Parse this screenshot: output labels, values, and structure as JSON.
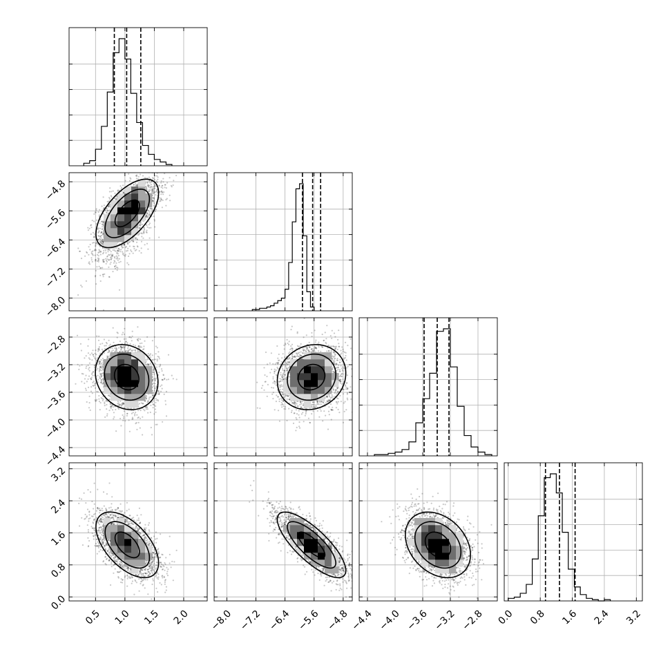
{
  "chart_data": {
    "type": "corner",
    "parameters": [
      {
        "range": [
          0.05,
          2.4
        ],
        "ticks": [
          0.5,
          1.0,
          1.5,
          2.0
        ],
        "tick_labels": [
          "0.5",
          "1.0",
          "1.5",
          "2.0"
        ],
        "quantiles": [
          0.82,
          1.03,
          1.27
        ]
      },
      {
        "range": [
          -8.35,
          -4.55
        ],
        "ticks": [
          -8.0,
          -7.2,
          -6.4,
          -5.6,
          -4.8
        ],
        "tick_labels": [
          "−8.0",
          "−7.2",
          "−6.4",
          "−5.6",
          "−4.8"
        ],
        "quantiles": [
          -5.92,
          -5.64,
          -5.42
        ]
      },
      {
        "range": [
          -4.52,
          -2.52
        ],
        "ticks": [
          -4.4,
          -4.0,
          -3.6,
          -3.2,
          -2.8
        ],
        "tick_labels": [
          "−4.4",
          "−4.0",
          "−3.6",
          "−3.2",
          "−2.8"
        ],
        "quantiles": [
          -3.58,
          -3.39,
          -3.22
        ]
      },
      {
        "range": [
          -0.1,
          3.35
        ],
        "ticks": [
          0.0,
          0.8,
          1.6,
          2.4,
          3.2
        ],
        "tick_labels": [
          "0.0",
          "0.8",
          "1.6",
          "2.4",
          "3.2"
        ],
        "quantiles": [
          0.93,
          1.28,
          1.67
        ]
      }
    ],
    "histograms": [
      {
        "bin_start": 0.3,
        "bin_width": 0.1,
        "counts": [
          2,
          4,
          13,
          31,
          58,
          89,
          100,
          84,
          57,
          34,
          16,
          9,
          5,
          3,
          1
        ]
      },
      {
        "bin_start": -7.3,
        "bin_width": 0.1,
        "counts": [
          1,
          1,
          2,
          2,
          3,
          4,
          6,
          8,
          10,
          17,
          38,
          70,
          96,
          100,
          59,
          15,
          3
        ]
      },
      {
        "bin_start": -4.3,
        "bin_width": 0.1,
        "counts": [
          1,
          1,
          2,
          3,
          5,
          11,
          26,
          45,
          65,
          98,
          100,
          70,
          39,
          16,
          7,
          3,
          1
        ]
      },
      {
        "bin_start": 0.0,
        "bin_width": 0.15,
        "counts": [
          2,
          3,
          6,
          13,
          33,
          67,
          97,
          100,
          85,
          54,
          25,
          11,
          5,
          2,
          1,
          0,
          1
        ]
      }
    ],
    "pairs": [
      {
        "row": 1,
        "col": 0,
        "mean": [
          1.04,
          -5.67
        ],
        "sd": [
          0.26,
          0.46
        ],
        "rho": 0.6,
        "skew_y": -0.35
      },
      {
        "row": 2,
        "col": 0,
        "mean": [
          1.03,
          -3.38
        ],
        "sd": [
          0.26,
          0.23
        ],
        "rho": -0.15,
        "skew_y": 0
      },
      {
        "row": 2,
        "col": 1,
        "mean": [
          -5.67,
          -3.38
        ],
        "sd": [
          0.46,
          0.23
        ],
        "rho": 0.12,
        "skew_y": 0
      },
      {
        "row": 3,
        "col": 0,
        "mean": [
          1.04,
          1.3
        ],
        "sd": [
          0.26,
          0.4
        ],
        "rho": -0.55,
        "skew_y": 0
      },
      {
        "row": 3,
        "col": 1,
        "mean": [
          -5.67,
          1.3
        ],
        "sd": [
          0.46,
          0.4
        ],
        "rho": -0.78,
        "skew_y": 0
      },
      {
        "row": 3,
        "col": 2,
        "mean": [
          -3.38,
          1.3
        ],
        "sd": [
          0.23,
          0.4
        ],
        "rho": -0.3,
        "skew_y": 0
      }
    ],
    "contour_levels_sigma": [
      0.8,
      1.45,
      2.05
    ],
    "density_colormap": [
      "#ffffff",
      "#d9d9d9",
      "#a6a6a6",
      "#6e6e6e",
      "#3a3a3a",
      "#000000"
    ],
    "grid": true,
    "title": "",
    "xlabel": "",
    "ylabel": ""
  }
}
